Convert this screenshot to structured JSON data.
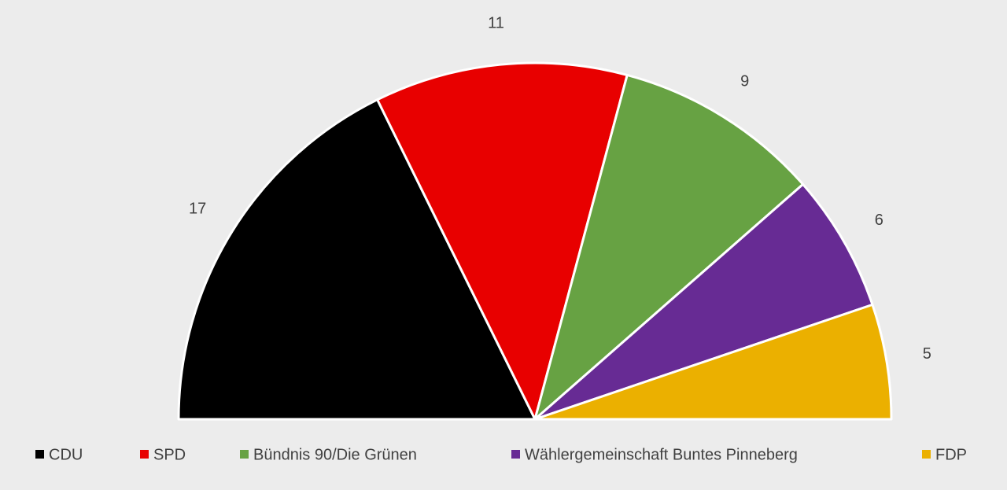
{
  "chart_data": {
    "type": "pie",
    "half": true,
    "categories": [
      "CDU",
      "SPD",
      "Bündnis 90/Die Grünen",
      "Wählergemeinschaft Buntes Pinneberg",
      "FDP"
    ],
    "values": [
      17,
      11,
      9,
      6,
      5
    ],
    "colors": [
      "#000000",
      "#e80000",
      "#67a243",
      "#672b94",
      "#ebb000"
    ],
    "legend": "bottom"
  }
}
